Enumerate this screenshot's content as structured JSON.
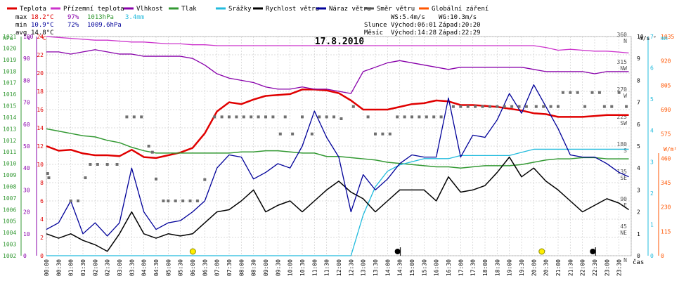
{
  "chart_data": {
    "type": "line",
    "title": "17.8.2010",
    "legend": [
      {
        "label": "Teplota",
        "color": "#e00000"
      },
      {
        "label": "Přízemní teplota",
        "color": "#cc33cc"
      },
      {
        "label": "Vlhkost",
        "color": "#8800aa"
      },
      {
        "label": "Tlak",
        "color": "#339933"
      },
      {
        "label": "Srážky",
        "color": "#22bbdd"
      },
      {
        "label": "Rychlost větru",
        "color": "#000000"
      },
      {
        "label": "Náraz větru",
        "color": "#000099"
      },
      {
        "label": "Směr větru",
        "color": "#555555"
      },
      {
        "label": "Globální záření",
        "color": "#ff5500"
      }
    ],
    "stats": {
      "max_label": "max",
      "max_temp": "18.2°C",
      "max_hum": "97%",
      "max_press": "1013hPa",
      "max_rain": "3.4mm",
      "min_label": "min",
      "min_temp": "10.9°C",
      "min_hum": "72%",
      "min_press": "1009.6hPa",
      "avg_label": "avg",
      "avg_temp": "14.8°C"
    },
    "info": {
      "ws": "WS:5.4m/s",
      "wg": "WG:10.3m/s",
      "sun_label": "Slunce",
      "sun_rise": "Východ:06:01",
      "sun_set": "Západ:20:20",
      "moon_label": "Měsíc",
      "moon_rise": "Východ:14:28",
      "moon_set": "Západ:22:29"
    },
    "axes": {
      "hpa_label": "hPa",
      "pct_label": "%",
      "c_label": "°C",
      "ms_label": "m/s",
      "dir_label": "°",
      "mm_label": "mm",
      "wm2_label": "W/m²",
      "x_label": "čas",
      "hpa_ticks": [
        "1002",
        "1003",
        "1004",
        "1005",
        "1006",
        "1007",
        "1008",
        "1009",
        "1010",
        "1011",
        "1012",
        "1013",
        "1014",
        "1015",
        "1016",
        "1017",
        "1018",
        "1019",
        "1020",
        "1021"
      ],
      "pct_ticks": [
        "0",
        "10",
        "20",
        "30",
        "40",
        "50",
        "60",
        "70",
        "80",
        "90",
        "100"
      ],
      "c_ticks": [
        "0",
        "2",
        "4",
        "6",
        "8",
        "10",
        "12",
        "14",
        "16",
        "18",
        "20",
        "22",
        "24"
      ],
      "ms_ticks": [
        "0",
        "1",
        "2",
        "3",
        "4",
        "5",
        "6",
        "7",
        "8",
        "9",
        "10"
      ],
      "dir_ticks": [
        "0",
        "45",
        "90",
        "135",
        "180",
        "225",
        "270",
        "315",
        "360"
      ],
      "dir_names": [
        "N",
        "NE",
        "E",
        "SE",
        "S",
        "SW",
        "W",
        "NW",
        "N"
      ],
      "mm_ticks": [
        "0",
        "1",
        "2",
        "3",
        "4",
        "5",
        "6",
        "7"
      ],
      "wm2_ticks": [
        "0",
        "115",
        "230",
        "345",
        "460",
        "575",
        "690",
        "805",
        "920",
        "1035"
      ],
      "x_ticks": [
        "00:00",
        "00:30",
        "01:00",
        "01:30",
        "02:00",
        "02:30",
        "03:00",
        "03:30",
        "04:00",
        "04:30",
        "05:00",
        "05:30",
        "06:00",
        "06:30",
        "07:00",
        "07:30",
        "08:00",
        "08:30",
        "09:00",
        "09:30",
        "10:00",
        "10:30",
        "11:00",
        "11:30",
        "12:00",
        "12:30",
        "13:00",
        "13:30",
        "14:00",
        "14:30",
        "15:00",
        "15:30",
        "16:00",
        "16:30",
        "17:00",
        "17:30",
        "18:00",
        "18:30",
        "19:00",
        "19:30",
        "20:00",
        "20:30",
        "21:00",
        "21:30",
        "22:00",
        "22:30",
        "23:00",
        "23:30"
      ]
    },
    "x_hours": [
      0,
      0.5,
      1,
      1.5,
      2,
      2.5,
      3,
      3.5,
      4,
      4.5,
      5,
      5.5,
      6,
      6.5,
      7,
      7.5,
      8,
      8.5,
      9,
      9.5,
      10,
      10.5,
      11,
      11.5,
      12,
      12.5,
      13,
      13.5,
      14,
      14.5,
      15,
      15.5,
      16,
      16.5,
      17,
      17.5,
      18,
      18.5,
      19,
      19.5,
      20,
      20.5,
      21,
      21.5,
      22,
      22.5,
      23,
      23.5,
      23.9
    ],
    "series": [
      {
        "name": "Teplota",
        "axis": "c",
        "color": "#e00000",
        "values": [
          12,
          11.5,
          11.6,
          11.2,
          11,
          11,
          10.9,
          11.6,
          10.8,
          10.7,
          11,
          11.3,
          11.8,
          13.4,
          15.8,
          16.8,
          16.6,
          17.1,
          17.5,
          17.6,
          17.7,
          18.2,
          18.2,
          18.1,
          17.8,
          17,
          16,
          16,
          16,
          16.3,
          16.6,
          16.7,
          17,
          16.9,
          16.5,
          16.5,
          16.4,
          16.3,
          16.1,
          15.9,
          15.6,
          15.5,
          15.2,
          15.2,
          15.2,
          15.3,
          15.4,
          15.4,
          15.4
        ]
      },
      {
        "name": "Přízemní teplota",
        "axis": "c",
        "color": "#cc33cc",
        "values": [
          24,
          23.9,
          23.8,
          23.7,
          23.6,
          23.6,
          23.5,
          23.4,
          23.4,
          23.3,
          23.2,
          23.2,
          23.1,
          23.1,
          23,
          23,
          23,
          23,
          23,
          23,
          23,
          23,
          23,
          23,
          23,
          23,
          23,
          23,
          23,
          23,
          23,
          23,
          23,
          23,
          23,
          23,
          23,
          23,
          23,
          23,
          23,
          22.8,
          22.5,
          22.6,
          22.5,
          22.4,
          22.4,
          22.3,
          22.2
        ]
      },
      {
        "name": "Vlhkost",
        "axis": "pct",
        "color": "#8800aa",
        "values": [
          93,
          93,
          92,
          93,
          94,
          93,
          92,
          92,
          91,
          91,
          91,
          91,
          90,
          87,
          83,
          81,
          80,
          79,
          77,
          76,
          76,
          77,
          76,
          76,
          75,
          74,
          84,
          86,
          88,
          89,
          88,
          87,
          86,
          85,
          86,
          86,
          86,
          86,
          86,
          86,
          85,
          84,
          84,
          84,
          84,
          83,
          84,
          84,
          84
        ]
      },
      {
        "name": "Tlak",
        "axis": "hpa",
        "color": "#339933",
        "values": [
          1013,
          1012.8,
          1012.6,
          1012.4,
          1012.3,
          1012,
          1011.8,
          1011.4,
          1011.1,
          1010.9,
          1010.9,
          1010.9,
          1010.9,
          1010.9,
          1010.9,
          1010.9,
          1011,
          1011,
          1011.1,
          1011.1,
          1011,
          1010.9,
          1010.9,
          1010.6,
          1010.6,
          1010.5,
          1010.4,
          1010.3,
          1010.1,
          1010,
          1009.9,
          1009.8,
          1009.7,
          1009.7,
          1009.6,
          1009.7,
          1009.8,
          1009.8,
          1009.8,
          1009.9,
          1010.1,
          1010.3,
          1010.4,
          1010.4,
          1010.5,
          1010.5,
          1010.4,
          1010.4,
          1010.4
        ]
      },
      {
        "name": "Srážky",
        "axis": "mm",
        "color": "#22bbdd",
        "values": [
          0,
          0,
          0,
          0,
          0,
          0,
          0,
          0,
          0,
          0,
          0,
          0,
          0,
          0,
          0,
          0,
          0,
          0,
          0,
          0,
          0,
          0,
          0,
          0,
          0,
          0,
          1.3,
          2.2,
          2.7,
          2.9,
          3,
          3.1,
          3.1,
          3.1,
          3.2,
          3.2,
          3.2,
          3.2,
          3.2,
          3.3,
          3.4,
          3.4,
          3.4,
          3.4,
          3.4,
          3.4,
          3.4,
          3.4,
          3.4
        ]
      },
      {
        "name": "Rychlost větru",
        "axis": "ms",
        "color": "#000000",
        "values": [
          1,
          0.8,
          1,
          0.7,
          0.5,
          0.2,
          1,
          2,
          1,
          0.8,
          1,
          0.9,
          1,
          1.5,
          2,
          2.1,
          2.5,
          3,
          2,
          2.3,
          2.5,
          2,
          2.5,
          3,
          3.4,
          2.9,
          2.6,
          2,
          2.5,
          3,
          3,
          3,
          2.5,
          3.6,
          2.9,
          3,
          3.2,
          3.8,
          4.5,
          3.6,
          4,
          3.4,
          3,
          2.5,
          2,
          2.3,
          2.6,
          2.4,
          2.1
        ]
      },
      {
        "name": "Náraz větru",
        "axis": "ms",
        "color": "#000099",
        "values": [
          1.2,
          1.5,
          2.5,
          1,
          1.5,
          0.9,
          1.5,
          4,
          2,
          1.2,
          1.5,
          1.6,
          2,
          2.5,
          4,
          4.6,
          4.5,
          3.5,
          3.8,
          4.2,
          4,
          5,
          6.6,
          5.4,
          4.5,
          2,
          3.7,
          3,
          3.5,
          4.2,
          4.6,
          4.5,
          4.5,
          7.2,
          4.5,
          5.5,
          5.4,
          6.2,
          7.4,
          6.5,
          7.8,
          6.8,
          5.8,
          4.6,
          4.5,
          4.5,
          4.2,
          3.8,
          3.6
        ]
      }
    ],
    "wind_dir_points": [
      [
        0.05,
        135
      ],
      [
        0.1,
        128
      ],
      [
        1,
        90
      ],
      [
        1.3,
        90
      ],
      [
        1.6,
        128
      ],
      [
        1.8,
        150
      ],
      [
        2.1,
        150
      ],
      [
        2.5,
        150
      ],
      [
        2.9,
        150
      ],
      [
        3.3,
        228
      ],
      [
        3.6,
        228
      ],
      [
        3.9,
        228
      ],
      [
        4.2,
        180
      ],
      [
        4.35,
        170
      ],
      [
        4.5,
        126
      ],
      [
        4.8,
        90
      ],
      [
        5.0,
        90
      ],
      [
        5.3,
        90
      ],
      [
        5.6,
        90
      ],
      [
        5.9,
        90
      ],
      [
        6.2,
        90
      ],
      [
        6.5,
        125
      ],
      [
        6.9,
        228
      ],
      [
        7.2,
        228
      ],
      [
        7.5,
        228
      ],
      [
        7.8,
        228
      ],
      [
        8.1,
        228
      ],
      [
        8.4,
        228
      ],
      [
        8.7,
        228
      ],
      [
        9.0,
        228
      ],
      [
        9.3,
        228
      ],
      [
        9.6,
        200
      ],
      [
        9.8,
        228
      ],
      [
        10.1,
        200
      ],
      [
        10.5,
        228
      ],
      [
        10.9,
        200
      ],
      [
        11.2,
        228
      ],
      [
        11.5,
        228
      ],
      [
        11.8,
        228
      ],
      [
        12.1,
        225
      ],
      [
        12.6,
        245
      ],
      [
        13.2,
        228
      ],
      [
        13.5,
        200
      ],
      [
        13.8,
        200
      ],
      [
        14.1,
        200
      ],
      [
        14.4,
        228
      ],
      [
        14.7,
        228
      ],
      [
        15,
        228
      ],
      [
        15.3,
        228
      ],
      [
        15.6,
        228
      ],
      [
        15.9,
        228
      ],
      [
        16.2,
        228
      ],
      [
        16.7,
        245
      ],
      [
        17.0,
        245
      ],
      [
        17.3,
        245
      ],
      [
        17.6,
        245
      ],
      [
        17.9,
        245
      ],
      [
        18.2,
        245
      ],
      [
        18.5,
        245
      ],
      [
        18.8,
        245
      ],
      [
        19.1,
        245
      ],
      [
        19.4,
        245
      ],
      [
        19.7,
        245
      ],
      [
        20.1,
        245
      ],
      [
        20.4,
        245
      ],
      [
        20.7,
        245
      ],
      [
        21.0,
        245
      ],
      [
        21.2,
        268
      ],
      [
        21.5,
        268
      ],
      [
        21.8,
        268
      ],
      [
        22.1,
        245
      ],
      [
        22.4,
        268
      ],
      [
        22.7,
        268
      ],
      [
        22.9,
        245
      ],
      [
        23.2,
        245
      ],
      [
        23.5,
        268
      ],
      [
        23.8,
        245
      ]
    ],
    "markers": {
      "sun_rise_h": 6.01,
      "sun_set_h": 20.33,
      "moon_rise_h": 14.47,
      "moon_set_h": 22.48
    }
  }
}
